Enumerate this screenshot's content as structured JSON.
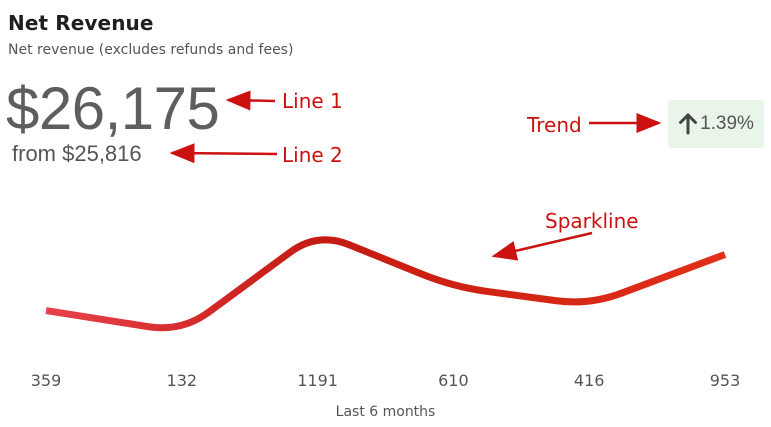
{
  "card": {
    "title": "Net Revenue",
    "subtitle": "Net revenue (excludes refunds and fees)",
    "value": "$26,175",
    "comparison": "from $25,816",
    "trend": {
      "direction": "up",
      "value": "1.39%",
      "icon": "arrow-up-icon",
      "badge_color": "#eaf5e9"
    },
    "period_label": "Last 6 months"
  },
  "annotations": {
    "line1": "Line 1",
    "line2": "Line 2",
    "trend": "Trend",
    "sparkline": "Sparkline",
    "color": "#cc1111"
  },
  "chart_data": {
    "type": "line",
    "categories": [
      "359",
      "132",
      "1191",
      "610",
      "416",
      "953"
    ],
    "values": [
      359,
      132,
      1191,
      610,
      416,
      953
    ],
    "xlabel": "Last 6 months",
    "ylabel": "",
    "ylim": [
      0,
      1300
    ],
    "grid": false,
    "legend": "none",
    "colors": {
      "start": "#e8414a",
      "mid": "#c41a12",
      "end": "#e03018"
    }
  }
}
